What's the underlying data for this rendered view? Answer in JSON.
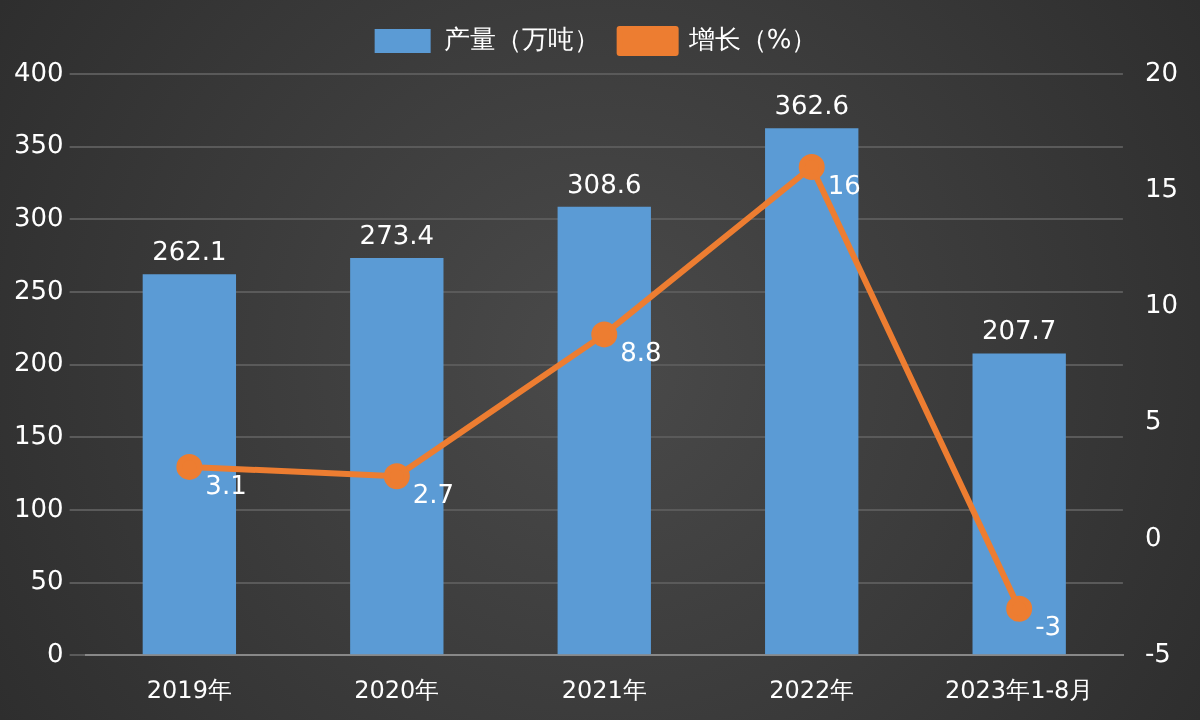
{
  "chart_data": {
    "type": "bar",
    "categories": [
      "2019年",
      "2020年",
      "2021年",
      "2022年",
      "2023年1-8月"
    ],
    "series": [
      {
        "name": "产量（万吨）",
        "color": "#5b9bd5",
        "values": [
          262.1,
          273.4,
          308.6,
          362.6,
          207.7
        ]
      },
      {
        "name": "增长（%）",
        "type": "line",
        "axis": "y2",
        "color": "#ed7d31",
        "values": [
          3.1,
          2.7,
          8.8,
          16,
          -3
        ]
      }
    ],
    "ylim": [
      0,
      400
    ],
    "yticks": [
      0,
      50,
      100,
      150,
      200,
      250,
      300,
      350,
      400
    ],
    "y2lim": [
      -5,
      20
    ],
    "y2ticks": [
      -5,
      0,
      5,
      10,
      15,
      20
    ],
    "grid": "y",
    "legend": "top",
    "marker": "circle",
    "line_style": "solid",
    "data_labels": true
  }
}
